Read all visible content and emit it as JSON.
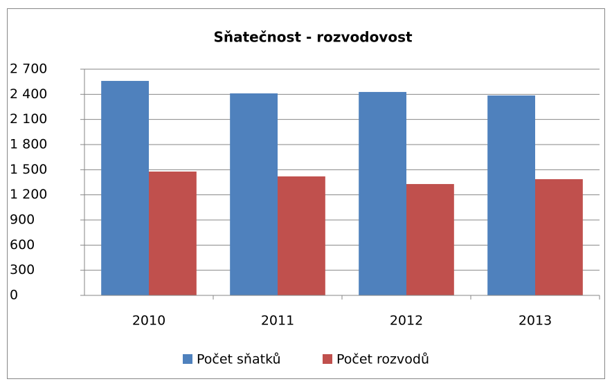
{
  "chart_data": {
    "type": "bar",
    "title": "Sňatečnost - rozvodovost",
    "categories": [
      "2010",
      "2011",
      "2012",
      "2013"
    ],
    "series": [
      {
        "name": "Počet sňatků",
        "color": "#4f81bd",
        "values": [
          2560,
          2411,
          2428,
          2386
        ]
      },
      {
        "name": "Počet rozvodů",
        "color": "#c0504d",
        "values": [
          1478,
          1420,
          1329,
          1387
        ]
      }
    ],
    "ylim": [
      0,
      2700
    ],
    "yticks": [
      0,
      300,
      600,
      900,
      {
        "value": 1200,
        "label": "1 200"
      },
      {
        "value": 1500,
        "label": "1 500"
      },
      {
        "value": 1800,
        "label": "1 800"
      },
      {
        "value": 2100,
        "label": "2 100"
      },
      {
        "value": 2400,
        "label": "2 400"
      },
      {
        "value": 2700,
        "label": "2 700"
      }
    ],
    "grid": true,
    "legend": "bottom"
  }
}
